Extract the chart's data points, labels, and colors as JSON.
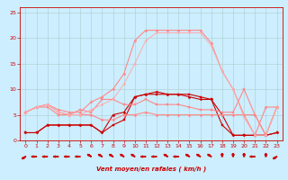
{
  "xlabel": "Vent moyen/en rafales ( km/h )",
  "bg_color": "#cceeff",
  "grid_color": "#aacccc",
  "xlim": [
    -0.5,
    23.5
  ],
  "ylim": [
    0,
    26
  ],
  "yticks": [
    0,
    5,
    10,
    15,
    20,
    25
  ],
  "xticks": [
    0,
    1,
    2,
    3,
    4,
    5,
    6,
    7,
    8,
    9,
    10,
    11,
    12,
    13,
    14,
    15,
    16,
    17,
    18,
    19,
    20,
    21,
    22,
    23
  ],
  "series": [
    {
      "x": [
        0,
        1,
        2,
        3,
        4,
        5,
        6,
        7,
        8,
        9,
        10,
        11,
        12,
        13,
        14,
        15,
        16,
        17,
        18,
        19,
        20,
        21,
        22,
        23
      ],
      "y": [
        1.5,
        1.5,
        3,
        3,
        3,
        3,
        3,
        1.5,
        3,
        4,
        8.5,
        9,
        9,
        9,
        9,
        9,
        8.5,
        8,
        3,
        1,
        1,
        1,
        1,
        1.5
      ],
      "color": "#cc0000",
      "lw": 0.8,
      "marker": "s",
      "ms": 1.8
    },
    {
      "x": [
        0,
        1,
        2,
        3,
        4,
        5,
        6,
        7,
        8,
        9,
        10,
        11,
        12,
        13,
        14,
        15,
        16,
        17,
        18,
        19,
        20,
        21,
        22,
        23
      ],
      "y": [
        1.5,
        1.5,
        3,
        3,
        3,
        3,
        3,
        1.5,
        5,
        5.5,
        8.5,
        9,
        9.5,
        9,
        9,
        8.5,
        8,
        8,
        5,
        1,
        1,
        1,
        1,
        1.5
      ],
      "color": "#cc0000",
      "lw": 0.8,
      "marker": "D",
      "ms": 1.5
    },
    {
      "x": [
        0,
        1,
        2,
        3,
        4,
        5,
        6,
        7,
        8,
        9,
        10,
        11,
        12,
        13,
        14,
        15,
        16,
        17,
        18,
        19,
        20,
        21,
        22,
        23
      ],
      "y": [
        5.5,
        6.5,
        7,
        5.5,
        5,
        5,
        5,
        4,
        4,
        5,
        5,
        5.5,
        5,
        5,
        5,
        5,
        5,
        5,
        5,
        5,
        5,
        5,
        1,
        6.5
      ],
      "color": "#ff8888",
      "lw": 0.8,
      "marker": "D",
      "ms": 1.5
    },
    {
      "x": [
        0,
        1,
        2,
        3,
        4,
        5,
        6,
        7,
        8,
        9,
        10,
        11,
        12,
        13,
        14,
        15,
        16,
        17,
        18,
        19,
        20,
        21,
        22,
        23
      ],
      "y": [
        5.5,
        6.5,
        6.5,
        5,
        5,
        6,
        5.5,
        8,
        8,
        7,
        7,
        8,
        7,
        7,
        7,
        6.5,
        6,
        6,
        5.5,
        5.5,
        10,
        5,
        1,
        6.5
      ],
      "color": "#ff8888",
      "lw": 0.8,
      "marker": "s",
      "ms": 1.5
    },
    {
      "x": [
        0,
        1,
        2,
        3,
        4,
        5,
        6,
        7,
        8,
        9,
        10,
        11,
        12,
        13,
        14,
        15,
        16,
        17,
        18,
        19,
        20,
        21,
        22,
        23
      ],
      "y": [
        5.5,
        6.5,
        7,
        6,
        5.5,
        5.5,
        7.5,
        8.5,
        10,
        13,
        19.5,
        21.5,
        21.5,
        21.5,
        21.5,
        21.5,
        21.5,
        19,
        13.5,
        10,
        5,
        1,
        6.5,
        6.5
      ],
      "color": "#ff8888",
      "lw": 0.8,
      "marker": "D",
      "ms": 1.5
    },
    {
      "x": [
        0,
        1,
        2,
        3,
        4,
        5,
        6,
        7,
        8,
        9,
        10,
        11,
        12,
        13,
        14,
        15,
        16,
        17,
        18,
        19,
        20,
        21,
        22,
        23
      ],
      "y": [
        5.5,
        6.5,
        7,
        5.5,
        5,
        5,
        6,
        7,
        8,
        11,
        15,
        19.5,
        21,
        21,
        21,
        21,
        21,
        18.5,
        13.5,
        10,
        4.5,
        1,
        1,
        6.5
      ],
      "color": "#ffaaaa",
      "lw": 0.7,
      "marker": "D",
      "ms": 1.3
    }
  ],
  "wind_arrows": [
    [
      0,
      225
    ],
    [
      1,
      270
    ],
    [
      2,
      270
    ],
    [
      3,
      270
    ],
    [
      4,
      270
    ],
    [
      5,
      270
    ],
    [
      6,
      315
    ],
    [
      7,
      315
    ],
    [
      8,
      315
    ],
    [
      9,
      315
    ],
    [
      10,
      315
    ],
    [
      11,
      270
    ],
    [
      12,
      270
    ],
    [
      13,
      315
    ],
    [
      14,
      270
    ],
    [
      15,
      315
    ],
    [
      16,
      315
    ],
    [
      17,
      315
    ],
    [
      18,
      0
    ],
    [
      19,
      0
    ],
    [
      20,
      0
    ],
    [
      21,
      270
    ],
    [
      22,
      0
    ],
    [
      23,
      225
    ]
  ]
}
